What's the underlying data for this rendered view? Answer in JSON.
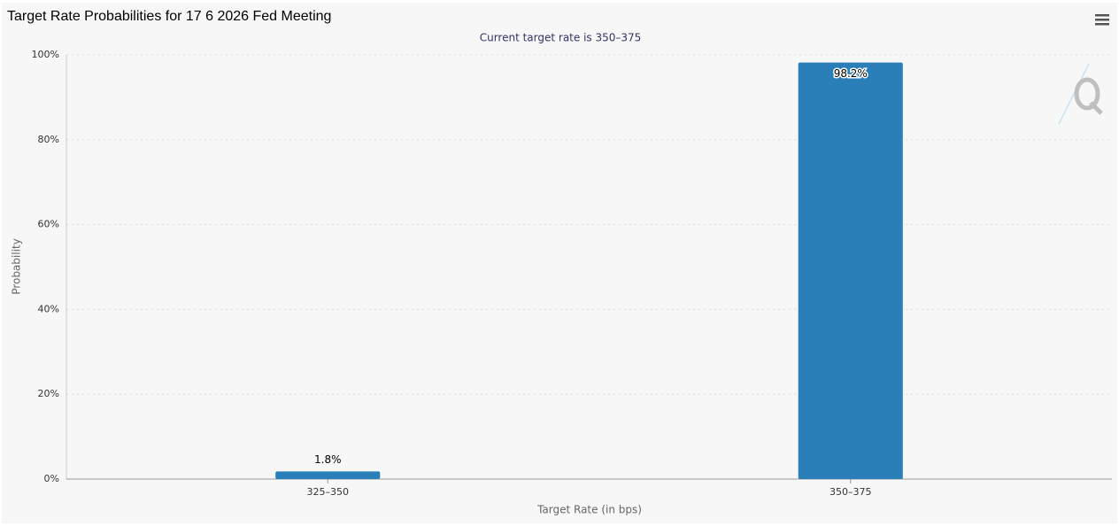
{
  "chart_data": {
    "type": "bar",
    "title": "Target Rate Probabilities for 17 6 2026 Fed Meeting",
    "subtitle": "Current target rate is 350–375",
    "x_label": "Target Rate (in bps)",
    "y_label": "Probability",
    "categories": [
      "325–350",
      "350–375"
    ],
    "values": [
      1.8,
      98.2
    ],
    "value_labels": [
      "1.8%",
      "98.2%"
    ],
    "color": "#2a7fb8",
    "ylim": [
      0,
      100
    ],
    "yticks": [
      {
        "value": 0,
        "label": "0%"
      },
      {
        "value": 20,
        "label": "20%"
      },
      {
        "value": 40,
        "label": "40%"
      },
      {
        "value": 60,
        "label": "60%"
      },
      {
        "value": 80,
        "label": "80%"
      },
      {
        "value": 100,
        "label": "100%"
      }
    ],
    "grid": true
  }
}
